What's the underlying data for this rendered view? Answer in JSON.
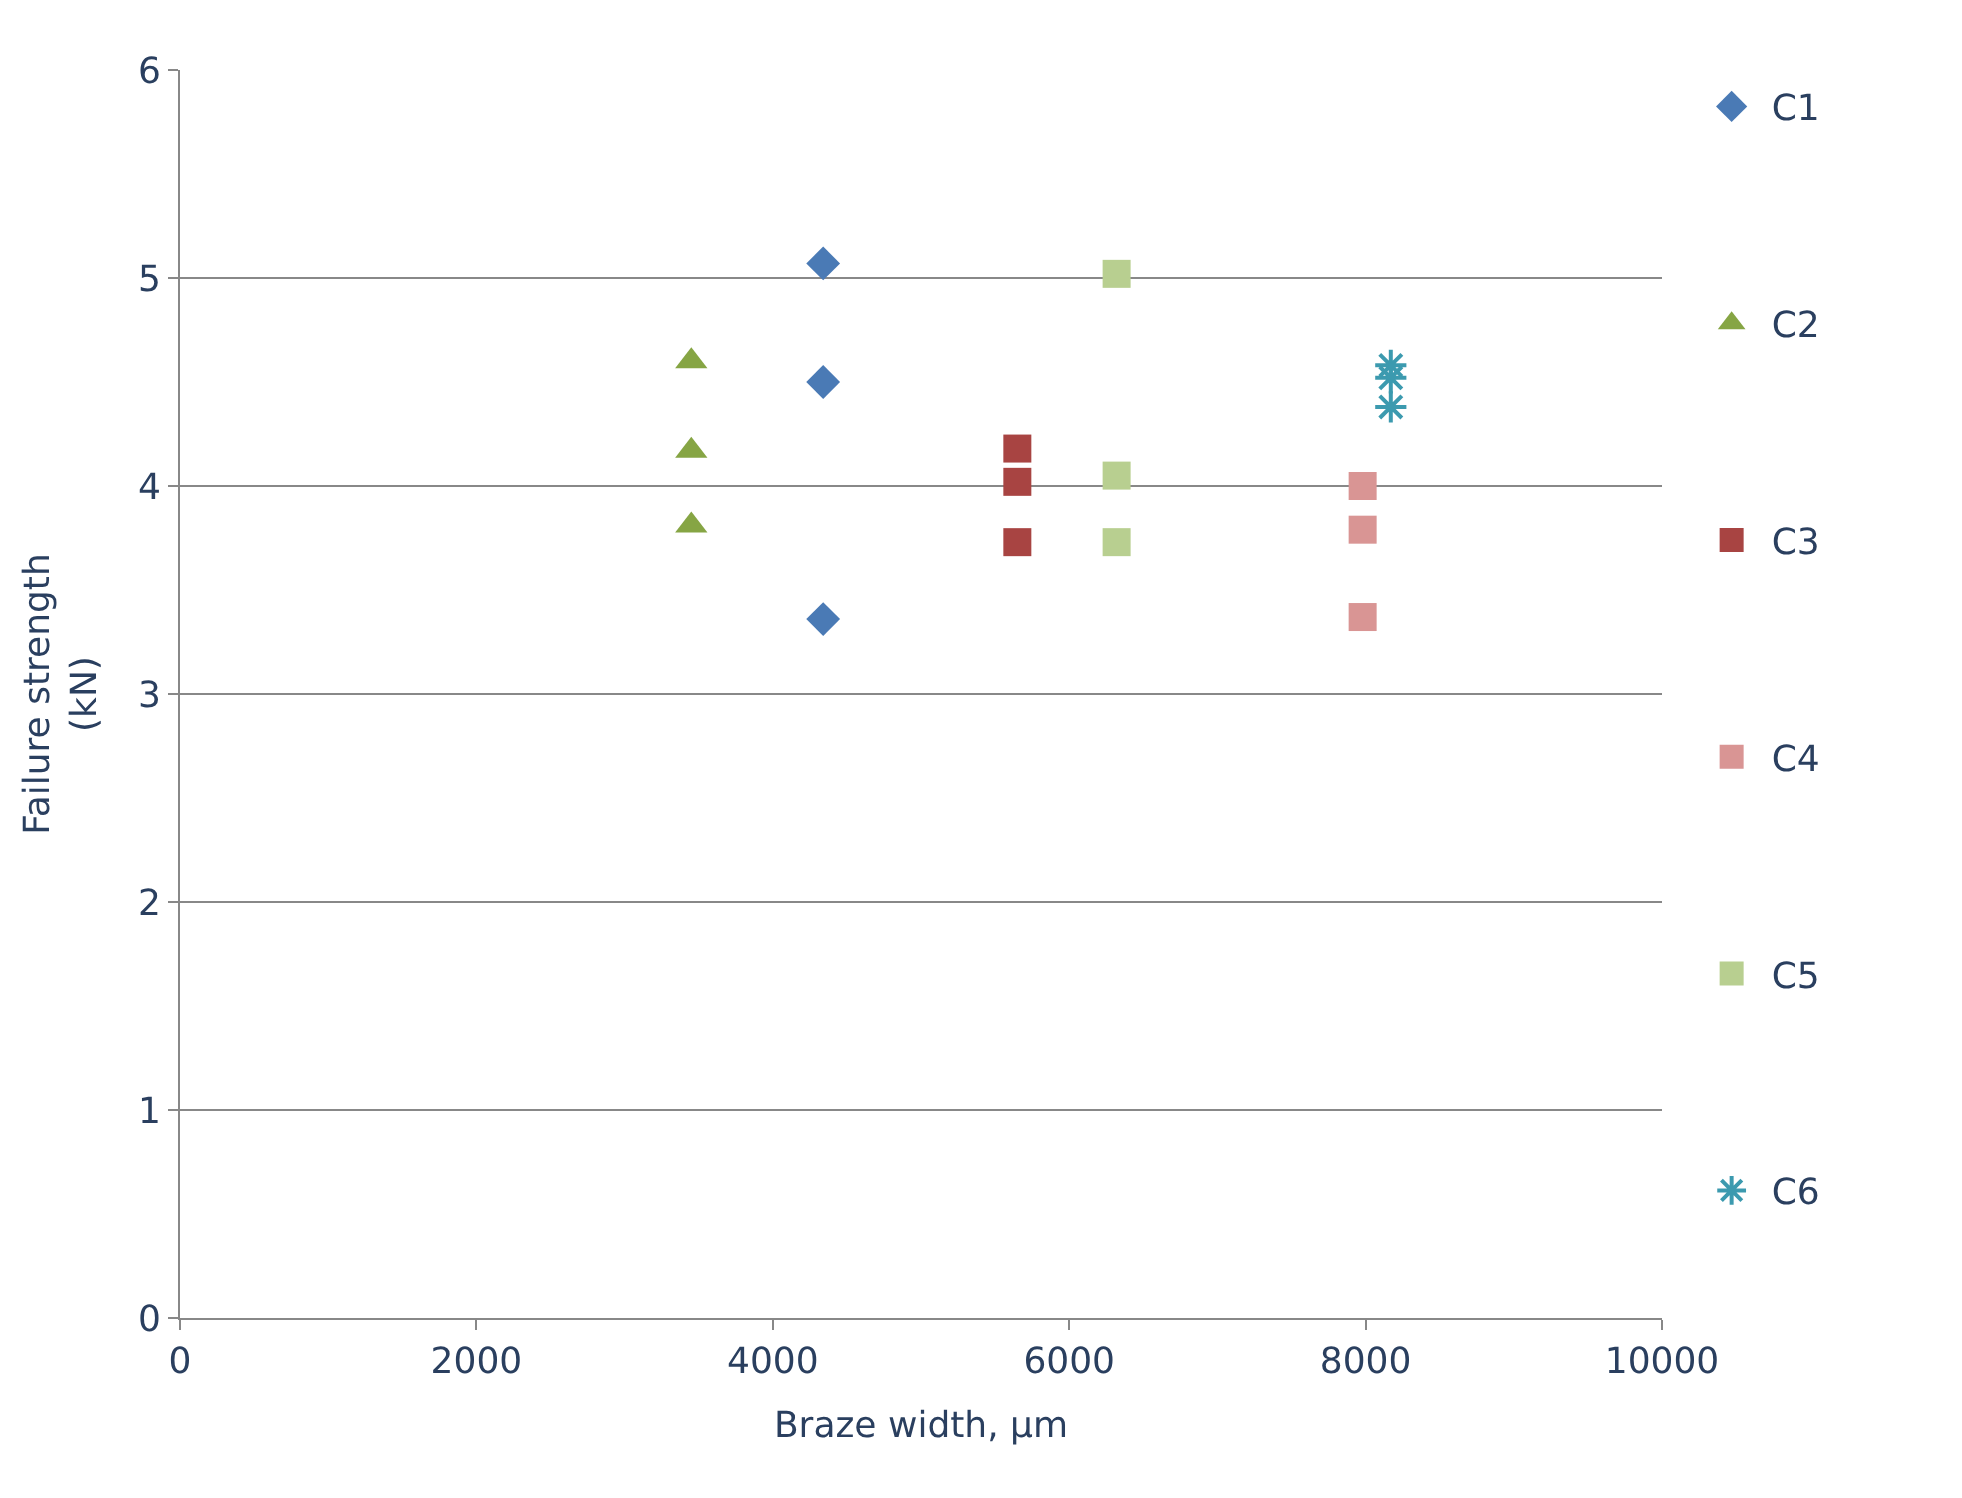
{
  "chart_data": {
    "type": "scatter",
    "xlabel": "Braze width, µm",
    "ylabel": "Failure strength (kN)",
    "xlim": [
      0,
      10000
    ],
    "xticks": [
      0,
      2000,
      4000,
      6000,
      8000,
      10000
    ],
    "ylim": [
      0,
      6
    ],
    "yticks": [
      0,
      1,
      2,
      3,
      4,
      5,
      6
    ],
    "grid": "y",
    "legend": "right",
    "series": [
      {
        "name": "C1",
        "color": "#4a7ab5",
        "marker": "diamond",
        "x": [
          4340,
          4340,
          4340
        ],
        "values": [
          5.07,
          4.5,
          3.36
        ]
      },
      {
        "name": "C2",
        "color": "#86a544",
        "marker": "triangle",
        "x": [
          3450,
          3450,
          3450
        ],
        "values": [
          4.6,
          4.17,
          3.81
        ]
      },
      {
        "name": "C3",
        "color": "#a84442",
        "marker": "square",
        "x": [
          5650,
          5650,
          5650
        ],
        "values": [
          4.18,
          4.02,
          3.73
        ]
      },
      {
        "name": "C4",
        "color": "#d99594",
        "marker": "square",
        "x": [
          7980,
          7980,
          7980
        ],
        "values": [
          4.0,
          3.79,
          3.37
        ]
      },
      {
        "name": "C5",
        "color": "#b8cf90",
        "marker": "square",
        "x": [
          6320,
          6320,
          6320
        ],
        "values": [
          5.02,
          4.05,
          3.73
        ]
      },
      {
        "name": "C6",
        "color": "#3c9aaf",
        "marker": "cross",
        "x": [
          8170,
          8170,
          8170
        ],
        "values": [
          4.58,
          4.52,
          4.38
        ]
      }
    ]
  }
}
